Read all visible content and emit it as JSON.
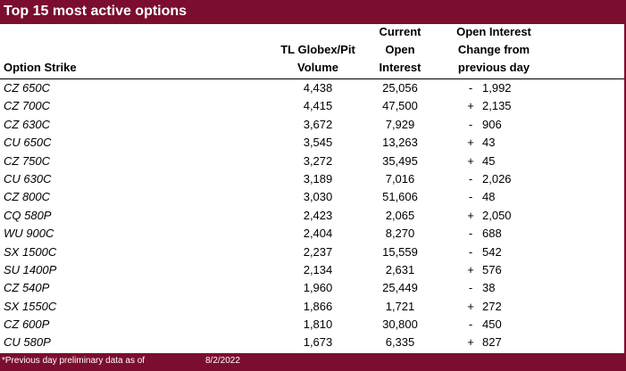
{
  "title": "Top 15 most active options",
  "headers": {
    "strike": "Option Strike",
    "volume": [
      "TL Globex/Pit",
      "Volume"
    ],
    "open_interest": [
      "Current",
      "Open",
      "Interest"
    ],
    "change": [
      "Open Interest",
      "Change from",
      "previous day"
    ]
  },
  "rows": [
    {
      "strike": "CZ 650C",
      "volume": "4,438",
      "oi": "25,056",
      "sign": "-",
      "change": "1,992"
    },
    {
      "strike": "CZ 700C",
      "volume": "4,415",
      "oi": "47,500",
      "sign": "+",
      "change": "2,135"
    },
    {
      "strike": "CZ 630C",
      "volume": "3,672",
      "oi": "7,929",
      "sign": "-",
      "change": "906"
    },
    {
      "strike": "CU 650C",
      "volume": "3,545",
      "oi": "13,263",
      "sign": "+",
      "change": "43"
    },
    {
      "strike": "CZ 750C",
      "volume": "3,272",
      "oi": "35,495",
      "sign": "+",
      "change": "45"
    },
    {
      "strike": "CU 630C",
      "volume": "3,189",
      "oi": "7,016",
      "sign": "-",
      "change": "2,026"
    },
    {
      "strike": "CZ 800C",
      "volume": "3,030",
      "oi": "51,606",
      "sign": "-",
      "change": "48"
    },
    {
      "strike": "CQ 580P",
      "volume": "2,423",
      "oi": "2,065",
      "sign": "+",
      "change": "2,050"
    },
    {
      "strike": "WU 900C",
      "volume": "2,404",
      "oi": "8,270",
      "sign": "-",
      "change": "688"
    },
    {
      "strike": "SX 1500C",
      "volume": "2,237",
      "oi": "15,559",
      "sign": "-",
      "change": "542"
    },
    {
      "strike": "SU 1400P",
      "volume": "2,134",
      "oi": "2,631",
      "sign": "+",
      "change": "576"
    },
    {
      "strike": "CZ 540P",
      "volume": "1,960",
      "oi": "25,449",
      "sign": "-",
      "change": "38"
    },
    {
      "strike": "SX 1550C",
      "volume": "1,866",
      "oi": "1,721",
      "sign": "+",
      "change": "272"
    },
    {
      "strike": "CZ 600P",
      "volume": "1,810",
      "oi": "30,800",
      "sign": "-",
      "change": "450"
    },
    {
      "strike": "CU 580P",
      "volume": "1,673",
      "oi": "6,335",
      "sign": "+",
      "change": "827"
    }
  ],
  "footer": {
    "note": "*Previous day preliminary data as of",
    "date": "8/2/2022"
  },
  "colors": {
    "accent": "#7b0e2e"
  }
}
